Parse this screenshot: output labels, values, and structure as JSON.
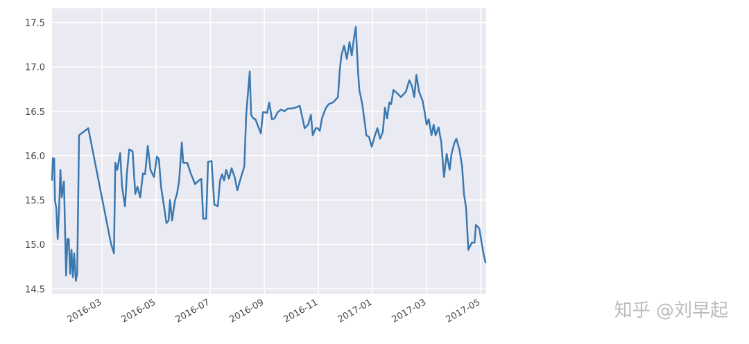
{
  "chart_data": {
    "type": "line",
    "x": [
      0.15,
      0.18,
      0.23,
      0.26,
      0.31,
      0.36,
      0.41,
      0.46,
      0.51,
      0.59,
      0.67,
      0.72,
      0.77,
      0.82,
      0.87,
      0.92,
      0.97,
      1.03,
      1.08,
      1.15,
      1.49,
      2.33,
      2.44,
      2.49,
      2.56,
      2.67,
      2.74,
      2.85,
      2.92,
      3.0,
      3.13,
      3.23,
      3.31,
      3.41,
      3.51,
      3.59,
      3.69,
      3.79,
      3.92,
      4.03,
      4.1,
      4.18,
      4.28,
      4.38,
      4.46,
      4.51,
      4.59,
      4.69,
      4.77,
      4.85,
      4.95,
      5.0,
      5.15,
      5.28,
      5.44,
      5.54,
      5.67,
      5.74,
      5.85,
      5.92,
      6.05,
      6.15,
      6.28,
      6.36,
      6.44,
      6.51,
      6.59,
      6.69,
      6.79,
      6.9,
      7.0,
      7.1,
      7.26,
      7.33,
      7.46,
      7.51,
      7.59,
      7.67,
      7.77,
      7.87,
      7.95,
      8.03,
      8.1,
      8.18,
      8.28,
      8.38,
      8.49,
      8.62,
      8.74,
      8.87,
      9.0,
      9.13,
      9.31,
      9.41,
      9.49,
      9.62,
      9.72,
      9.79,
      9.9,
      9.97,
      10.05,
      10.13,
      10.21,
      10.28,
      10.38,
      10.54,
      10.72,
      10.79,
      10.85,
      10.95,
      11.05,
      11.15,
      11.23,
      11.31,
      11.38,
      11.46,
      11.51,
      11.62,
      11.72,
      11.77,
      11.87,
      11.97,
      12.08,
      12.18,
      12.28,
      12.38,
      12.46,
      12.54,
      12.62,
      12.69,
      12.77,
      12.92,
      13.05,
      13.23,
      13.36,
      13.46,
      13.54,
      13.62,
      13.72,
      13.85,
      13.92,
      14.0,
      14.08,
      14.18,
      14.26,
      14.33,
      14.44,
      14.54,
      14.64,
      14.74,
      14.85,
      14.92,
      15.03,
      15.1,
      15.21,
      15.31,
      15.38,
      15.46,
      15.54,
      15.67,
      15.77,
      15.82,
      15.95,
      16.03,
      16.1,
      16.18
    ],
    "series": [
      {
        "color": "#3a78b0",
        "values": [
          15.72,
          15.97,
          15.97,
          15.49,
          15.41,
          15.06,
          15.37,
          15.84,
          15.53,
          15.71,
          14.65,
          15.06,
          15.06,
          14.67,
          14.94,
          14.63,
          14.9,
          14.59,
          14.67,
          16.23,
          16.31,
          15.01,
          14.9,
          15.92,
          15.84,
          16.03,
          15.65,
          15.43,
          15.8,
          16.07,
          16.05,
          15.57,
          15.65,
          15.53,
          15.8,
          15.79,
          16.11,
          15.84,
          15.76,
          15.99,
          15.96,
          15.65,
          15.45,
          15.24,
          15.27,
          15.5,
          15.27,
          15.49,
          15.57,
          15.72,
          16.15,
          15.92,
          15.92,
          15.8,
          15.68,
          15.71,
          15.74,
          15.29,
          15.29,
          15.93,
          15.94,
          15.45,
          15.43,
          15.72,
          15.79,
          15.72,
          15.84,
          15.74,
          15.86,
          15.76,
          15.61,
          15.72,
          15.88,
          16.46,
          16.95,
          16.46,
          16.42,
          16.41,
          16.33,
          16.25,
          16.49,
          16.49,
          16.48,
          16.6,
          16.41,
          16.42,
          16.49,
          16.52,
          16.5,
          16.53,
          16.53,
          16.54,
          16.56,
          16.42,
          16.31,
          16.35,
          16.46,
          16.23,
          16.31,
          16.31,
          16.28,
          16.42,
          16.49,
          16.54,
          16.58,
          16.6,
          16.66,
          16.97,
          17.13,
          17.24,
          17.09,
          17.28,
          17.13,
          17.32,
          17.45,
          16.97,
          16.74,
          16.58,
          16.35,
          16.23,
          16.21,
          16.1,
          16.22,
          16.31,
          16.19,
          16.27,
          16.54,
          16.42,
          16.6,
          16.58,
          16.74,
          16.7,
          16.66,
          16.72,
          16.85,
          16.78,
          16.66,
          16.91,
          16.72,
          16.62,
          16.5,
          16.35,
          16.41,
          16.23,
          16.35,
          16.23,
          16.32,
          16.15,
          15.76,
          16.02,
          15.84,
          16.02,
          16.15,
          16.19,
          16.07,
          15.88,
          15.57,
          15.41,
          14.94,
          15.02,
          15.02,
          15.22,
          15.18,
          15.02,
          14.9,
          14.79
        ]
      }
    ],
    "xlim": [
      0.15,
      16.2
    ],
    "xticks": [
      {
        "value": 2,
        "label": "2016-03"
      },
      {
        "value": 4,
        "label": "2016-05"
      },
      {
        "value": 6,
        "label": "2016-07"
      },
      {
        "value": 8,
        "label": "2016-09"
      },
      {
        "value": 10,
        "label": "2016-11"
      },
      {
        "value": 12,
        "label": "2017-01"
      },
      {
        "value": 14,
        "label": "2017-03"
      },
      {
        "value": 16,
        "label": "2017-05"
      }
    ],
    "ylim": [
      14.44,
      17.66
    ],
    "yticks": [
      14.5,
      {
        "value": 15,
        "label": "15.0"
      },
      15.5,
      {
        "value": 16,
        "label": "16.0"
      },
      16.5,
      {
        "value": 17,
        "label": "17.0"
      },
      17.5
    ],
    "grid": true
  },
  "watermark": "知乎 @刘早起"
}
